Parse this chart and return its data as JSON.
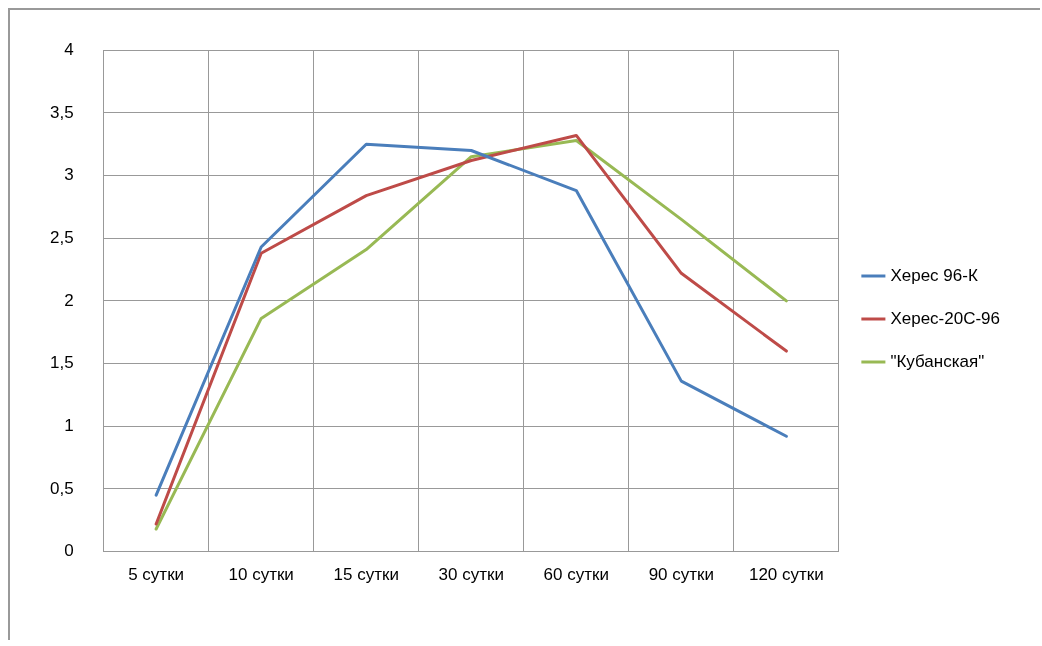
{
  "chart_data": {
    "type": "line",
    "categories": [
      "5 сутки",
      "10 сутки",
      "15 сутки",
      "30 сутки",
      "60 сутки",
      "90 сутки",
      "120 сутки"
    ],
    "series": [
      {
        "name": "Херес 96-К",
        "color": "#4a7ebb",
        "values": [
          0.45,
          2.43,
          3.25,
          3.2,
          2.88,
          1.36,
          0.92
        ]
      },
      {
        "name": "Херес-20С-96",
        "color": "#be4b48",
        "values": [
          0.22,
          2.38,
          2.84,
          3.12,
          3.32,
          2.22,
          1.6
        ]
      },
      {
        "name": "\"Кубанская\"",
        "color": "#98b954",
        "values": [
          0.18,
          1.86,
          2.41,
          3.15,
          3.28,
          2.65,
          2.0
        ]
      }
    ],
    "ylim": [
      0,
      4
    ],
    "yticks": [
      0,
      {
        "value": 0.5,
        "label": "0,5"
      },
      1,
      {
        "value": 1.5,
        "label": "1,5"
      },
      2,
      {
        "value": 2.5,
        "label": "2,5"
      },
      3,
      {
        "value": 3.5,
        "label": "3,5"
      },
      4
    ],
    "grid": true,
    "legend": "right",
    "marker": "none",
    "line_style": "solid"
  }
}
